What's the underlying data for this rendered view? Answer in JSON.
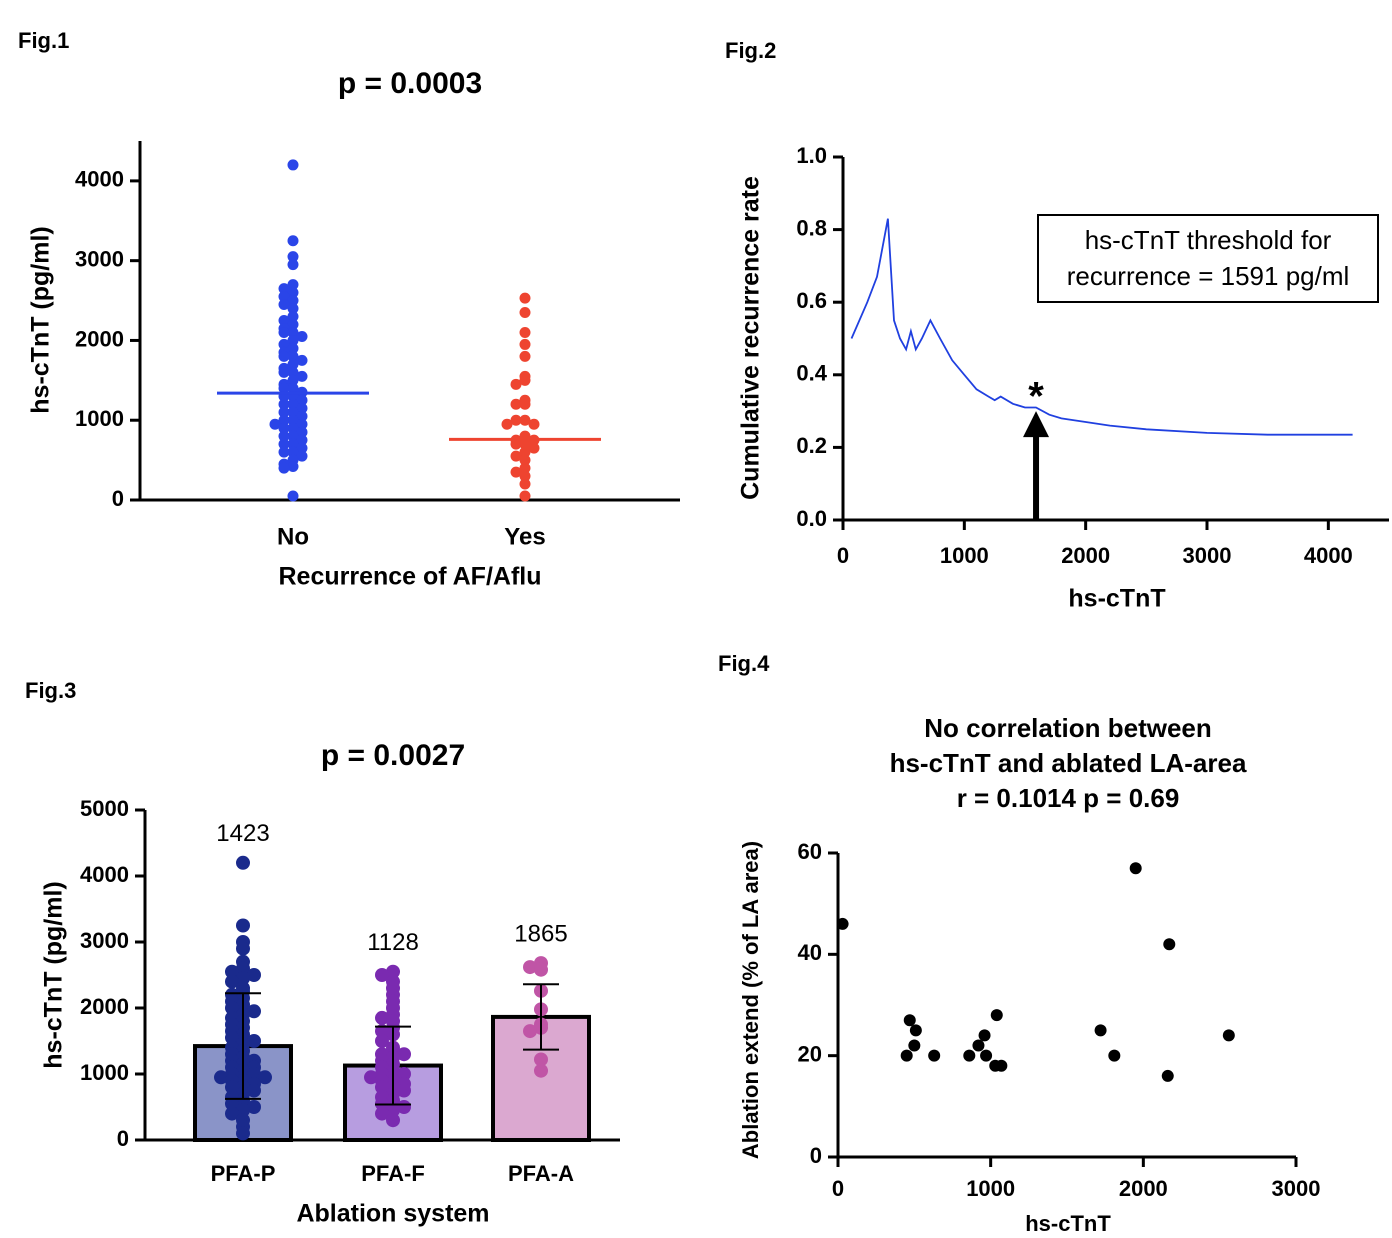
{
  "chart_data": [
    {
      "type": "strip",
      "label": "Fig.1",
      "title": "p = 0.0003",
      "xlabel": "Recurrence of AF/Aflu",
      "ylabel": "hs-cTnT (pg/ml)",
      "categories": [
        "No",
        "Yes"
      ],
      "colors": [
        "#2a45e8",
        "#ee4430"
      ],
      "points": [
        [
          4200,
          3250,
          3050,
          2950,
          2700,
          2650,
          2600,
          2550,
          2500,
          2450,
          2400,
          2300,
          2250,
          2200,
          2150,
          2100,
          2100,
          2050,
          2000,
          1950,
          1900,
          1850,
          1800,
          1800,
          1750,
          1700,
          1650,
          1600,
          1600,
          1550,
          1500,
          1450,
          1400,
          1400,
          1350,
          1300,
          1300,
          1250,
          1200,
          1200,
          1150,
          1100,
          1100,
          1050,
          1000,
          1000,
          950,
          950,
          900,
          900,
          850,
          800,
          800,
          750,
          700,
          700,
          650,
          600,
          600,
          550,
          500,
          450,
          420,
          400,
          50
        ],
        [
          2530,
          2350,
          2100,
          1950,
          1800,
          1550,
          1500,
          1450,
          1250,
          1200,
          1200,
          1000,
          1000,
          950,
          950,
          800,
          750,
          750,
          700,
          700,
          650,
          600,
          550,
          500,
          400,
          350,
          300,
          200,
          50
        ]
      ],
      "means": [
        1340,
        760
      ],
      "ylim": [
        0,
        4500
      ],
      "yticks": [
        0,
        1000,
        2000,
        3000,
        4000
      ]
    },
    {
      "type": "line",
      "label": "Fig.2",
      "xlabel": "hs-cTnT",
      "ylabel": "Cumulative recurrence rate",
      "color": "#2040e0",
      "x": [
        70,
        200,
        280,
        370,
        420,
        470,
        520,
        560,
        600,
        650,
        720,
        800,
        900,
        1000,
        1100,
        1200,
        1250,
        1300,
        1400,
        1500,
        1591,
        1700,
        1800,
        2000,
        2200,
        2500,
        3000,
        3500,
        4200
      ],
      "y": [
        0.5,
        0.6,
        0.67,
        0.83,
        0.55,
        0.5,
        0.47,
        0.52,
        0.47,
        0.5,
        0.55,
        0.5,
        0.44,
        0.4,
        0.36,
        0.34,
        0.33,
        0.34,
        0.32,
        0.31,
        0.31,
        0.29,
        0.28,
        0.27,
        0.26,
        0.25,
        0.24,
        0.235,
        0.235
      ],
      "annotation": [
        "hs-cTnT threshold for",
        "recurrence = 1591 pg/ml"
      ],
      "marker": {
        "x": 1591,
        "y": 0.3,
        "label": "*"
      },
      "xlim": [
        0,
        4500
      ],
      "xticks": [
        0,
        1000,
        2000,
        3000,
        4000
      ],
      "ylim": [
        0,
        1
      ],
      "yticks": [
        {
          "value": 0,
          "label": "0.0"
        },
        0.2,
        0.4,
        0.6,
        0.8,
        {
          "value": 1,
          "label": "1.0"
        }
      ]
    },
    {
      "type": "bar",
      "label": "Fig.3",
      "title": "p = 0.0027",
      "xlabel": "Ablation system",
      "ylabel": "hs-cTnT (pg/ml)",
      "categories": [
        "PFA-P",
        "PFA-F",
        "PFA-A"
      ],
      "values": [
        1423,
        1128,
        1865
      ],
      "errors": [
        800,
        590,
        495
      ],
      "colors": [
        "#8a94c8",
        "#b79de0",
        "#dba8d0"
      ],
      "point_colors": [
        "#1a2a8c",
        "#7a2ab0",
        "#c055a6"
      ],
      "points": [
        [
          4200,
          3250,
          3000,
          2900,
          2700,
          2600,
          2550,
          2500,
          2450,
          2400,
          2300,
          2250,
          2200,
          2150,
          2100,
          2050,
          2000,
          1950,
          1900,
          1850,
          1800,
          1750,
          1700,
          1650,
          1600,
          1550,
          1500,
          1450,
          1400,
          1350,
          1300,
          1250,
          1200,
          1200,
          1150,
          1100,
          1100,
          1050,
          1000,
          1000,
          950,
          950,
          900,
          900,
          850,
          800,
          800,
          750,
          700,
          650,
          600,
          550,
          500,
          450,
          400,
          300,
          200,
          100
        ],
        [
          2550,
          2500,
          2400,
          2300,
          2200,
          2100,
          2000,
          1900,
          1850,
          1800,
          1700,
          1650,
          1600,
          1500,
          1400,
          1350,
          1300,
          1300,
          1250,
          1200,
          1150,
          1100,
          1050,
          1000,
          1000,
          950,
          900,
          900,
          850,
          800,
          800,
          750,
          700,
          650,
          600,
          550,
          500,
          450,
          400,
          300
        ],
        [
          2680,
          2620,
          2580,
          2260,
          1980,
          1750,
          1700,
          1650,
          1220,
          1050
        ]
      ],
      "ylim": [
        0,
        5000
      ],
      "yticks": [
        0,
        1000,
        2000,
        3000,
        4000,
        5000
      ]
    },
    {
      "type": "scatter",
      "label": "Fig.4",
      "title": [
        "No correlation between",
        "hs-cTnT and ablated LA-area",
        "r = 0.1014 p = 0.69"
      ],
      "xlabel": "hs-cTnT",
      "ylabel": "Ablation extend (% of LA area)",
      "color": "#000000",
      "x": [
        30,
        450,
        470,
        500,
        510,
        630,
        860,
        920,
        960,
        970,
        1030,
        1040,
        1070,
        1720,
        1810,
        1950,
        2160,
        2170,
        2560
      ],
      "y": [
        46,
        20,
        27,
        22,
        25,
        20,
        20,
        22,
        24,
        20,
        18,
        28,
        18,
        25,
        20,
        57,
        16,
        42,
        24
      ],
      "xlim": [
        0,
        3000
      ],
      "xticks": [
        0,
        1000,
        2000,
        3000
      ],
      "ylim": [
        0,
        60
      ],
      "yticks": [
        0,
        20,
        40,
        60
      ]
    }
  ]
}
